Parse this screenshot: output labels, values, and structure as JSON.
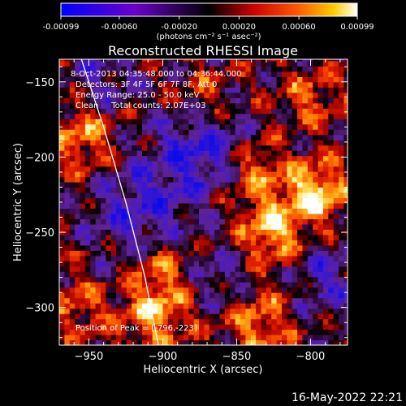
{
  "chart_data": {
    "type": "heatmap",
    "title": "Reconstructed RHESSI Image",
    "xlabel": "Heliocentric X (arcsec)",
    "ylabel": "Heliocentric Y (arcsec)",
    "xlim": [
      -970,
      -775
    ],
    "ylim": [
      -325,
      -135
    ],
    "xticks": [
      -950,
      -900,
      -850,
      -800
    ],
    "yticks": [
      -150,
      -200,
      -250,
      -300
    ],
    "colorbar": {
      "label": "(photons cm⁻² s⁻¹ asec⁻²)",
      "range": [
        -0.00099,
        0.00099
      ],
      "ticks": [
        -0.00099,
        -0.0006,
        -0.0002,
        0.0002,
        0.0006,
        0.00099
      ],
      "tick_labels": [
        "-0.00099",
        "-0.00060",
        "-0.00020",
        "0.00020",
        "0.00060",
        "0.00099"
      ]
    },
    "annotations": [
      "8-Oct-2013 04:35:48.000 to 04:36:44.000",
      "Detectors: 3F 4F 5F 6F 7F 8F, Att 0",
      "Energy Range: 25.0 - 50.0 keV",
      "Clean     Total counts: 2.07E+03"
    ],
    "peak_label": "Position of Peak = [-796,-223]",
    "peak": [
      -796,
      -223
    ],
    "grid": false,
    "blobs": [
      {
        "x": -796,
        "y": -223,
        "amp": 0.00095,
        "sigma": 14
      },
      {
        "x": -826,
        "y": -250,
        "amp": 0.0008,
        "sigma": 16
      },
      {
        "x": -838,
        "y": -210,
        "amp": 0.0006,
        "sigma": 14
      },
      {
        "x": -955,
        "y": -185,
        "amp": 0.0006,
        "sigma": 16
      },
      {
        "x": -905,
        "y": -305,
        "amp": 0.00065,
        "sigma": 16
      },
      {
        "x": -900,
        "y": -275,
        "amp": 0.0005,
        "sigma": 14
      },
      {
        "x": -835,
        "y": -310,
        "amp": 0.0006,
        "sigma": 16
      },
      {
        "x": -958,
        "y": -300,
        "amp": 0.00045,
        "sigma": 14
      },
      {
        "x": -872,
        "y": -160,
        "amp": 0.0004,
        "sigma": 14
      },
      {
        "x": -800,
        "y": -160,
        "amp": 0.00045,
        "sigma": 14
      },
      {
        "x": -875,
        "y": -195,
        "amp": -0.0007,
        "sigma": 22
      },
      {
        "x": -915,
        "y": -235,
        "amp": -0.0006,
        "sigma": 22
      },
      {
        "x": -790,
        "y": -280,
        "amp": -0.0005,
        "sigma": 18
      },
      {
        "x": -940,
        "y": -150,
        "amp": -0.0004,
        "sigma": 16
      },
      {
        "x": -860,
        "y": -280,
        "amp": -0.0004,
        "sigma": 16
      }
    ],
    "limb_curve": [
      [
        -955,
        -135
      ],
      [
        -940,
        -180
      ],
      [
        -925,
        -230
      ],
      [
        -912,
        -280
      ],
      [
        -903,
        -325
      ]
    ]
  },
  "footer": {
    "date": "16-May-2022 22:21"
  }
}
